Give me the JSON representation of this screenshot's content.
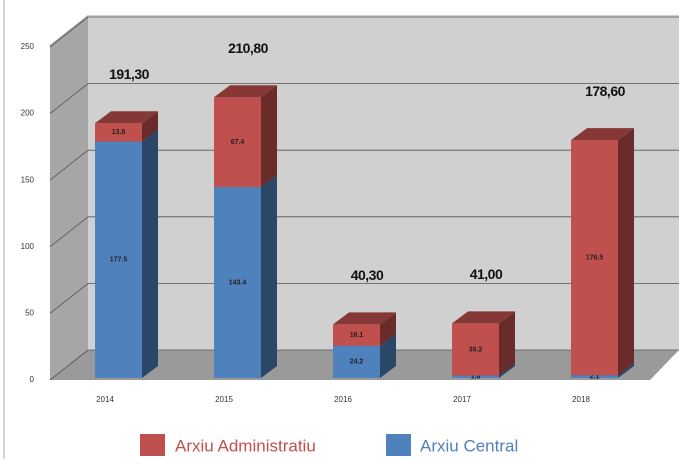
{
  "chart_data": {
    "type": "bar3d_stacked",
    "categories": [
      "2014",
      "2015",
      "2016",
      "2017",
      "2018"
    ],
    "series": [
      {
        "name": "Arxiu Central",
        "color": "#4f81bd",
        "values": [
          177.5,
          143.4,
          24.2,
          1.8,
          2.1
        ]
      },
      {
        "name": "Arxiu Administratiu",
        "color": "#c0504d",
        "values": [
          13.8,
          67.4,
          16.1,
          39.2,
          176.5
        ]
      }
    ],
    "totals": {
      "values": [
        191.3,
        210.8,
        40.3,
        41.0,
        178.6
      ],
      "value_labels": [
        "191,30",
        "210,80",
        "40,30",
        "41,00",
        "178,60"
      ]
    },
    "ylim": [
      0,
      250
    ],
    "yticks": [
      0,
      50,
      100,
      150,
      200,
      250
    ],
    "grid": true
  }
}
